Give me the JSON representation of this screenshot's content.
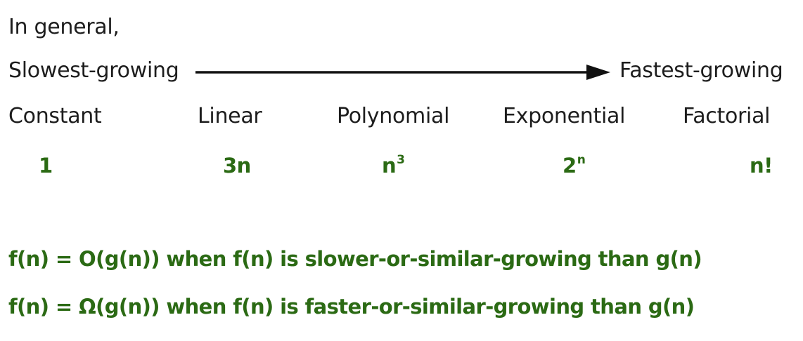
{
  "intro": "In general,",
  "scale": {
    "slowest_label": "Slowest-growing",
    "fastest_label": "Fastest-growing"
  },
  "classes": [
    {
      "name": "Constant",
      "base": "1",
      "exponent": ""
    },
    {
      "name": "Linear",
      "base": "3n",
      "exponent": ""
    },
    {
      "name": "Polynomial",
      "base": "n",
      "exponent": "3"
    },
    {
      "name": "Exponential",
      "base": "2",
      "exponent": "n"
    },
    {
      "name": "Factorial",
      "base": "n!",
      "exponent": ""
    }
  ],
  "definitions": [
    "f(n) = O(g(n)) when f(n) is slower-or-similar-growing than g(n)",
    "f(n) = Ω(g(n)) when f(n) is faster-or-similar-growing than g(n)"
  ],
  "colors": {
    "text": "#1d1d1d",
    "accent_green": "#2b6a14",
    "arrow": "#111111"
  },
  "icons": {
    "arrow": "right-arrow-icon"
  }
}
